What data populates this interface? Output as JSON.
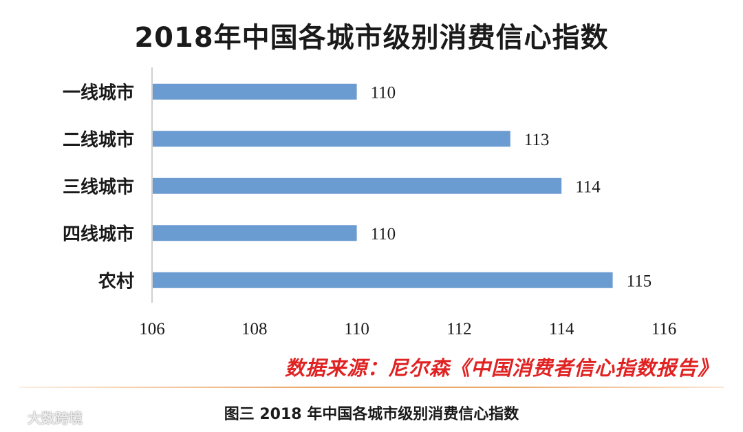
{
  "chart_data": {
    "type": "bar",
    "orientation": "horizontal",
    "title": "2018年中国各城市级别消费信心指数",
    "categories": [
      "一线城市",
      "二线城市",
      "三线城市",
      "四线城市",
      "农村"
    ],
    "values": [
      110,
      113,
      114,
      110,
      115
    ],
    "xlim": [
      106,
      116
    ],
    "xticks": [
      106,
      108,
      110,
      112,
      114,
      116
    ],
    "data_labels": true,
    "grid": false,
    "legend": "none",
    "bar_color": "#6a9bd1"
  },
  "source_text": "数据来源：尼尔森《中国消费者信心指数报告》",
  "caption": "图三  2018 年中国各城市级别消费信心指数",
  "watermark": "大数跨境",
  "colors": {
    "bar": "#6a9bd1",
    "source": "#e02222",
    "divider": "#eba86c",
    "axis": "#bfbfbf"
  },
  "icons": {
    "watermark_logo": "wechat-logo-icon"
  }
}
